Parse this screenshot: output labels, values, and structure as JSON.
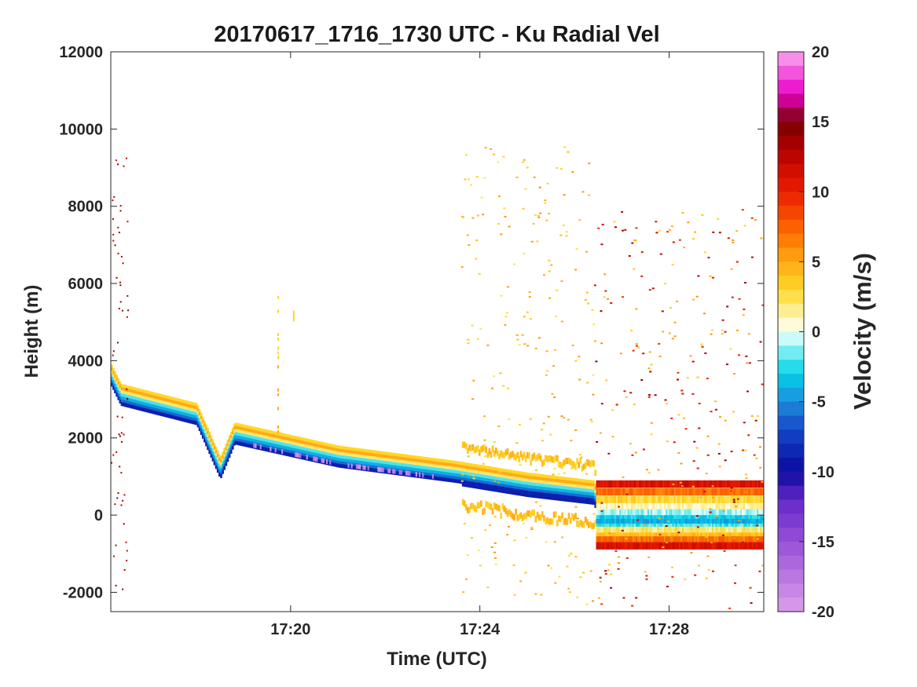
{
  "chart_data": {
    "type": "heatmap",
    "title": "20170617_1716_1730 UTC - Ku Radial Vel",
    "xlabel": "Time (UTC)",
    "ylabel": "Height (m)",
    "x_ticks": [
      "17:20",
      "17:24",
      "17:28"
    ],
    "x_tick_minutes": [
      20,
      24,
      28
    ],
    "xlim_minutes": [
      16.2,
      30
    ],
    "y_ticks": [
      "12000",
      "10000",
      "8000",
      "6000",
      "4000",
      "2000",
      "0",
      "-2000"
    ],
    "y_tick_values": [
      12000,
      10000,
      8000,
      6000,
      4000,
      2000,
      0,
      -2000
    ],
    "ylim": [
      -2500,
      12000
    ],
    "colorbar": {
      "label": "Velocity (m/s)",
      "ticks": [
        "20",
        "15",
        "10",
        "5",
        "0",
        "-5",
        "-10",
        "-15",
        "-20"
      ],
      "tick_values": [
        20,
        15,
        10,
        5,
        0,
        -5,
        -10,
        -15,
        -20
      ],
      "range": [
        -20,
        20
      ]
    },
    "signal_band_top_height_m": [
      [
        16.2,
        3900
      ],
      [
        16.4,
        3400
      ],
      [
        18.0,
        2900
      ],
      [
        18.5,
        1500
      ],
      [
        18.8,
        2400
      ],
      [
        21.0,
        1800
      ],
      [
        23.5,
        1400
      ],
      [
        25.0,
        1100
      ],
      [
        26.4,
        900
      ],
      [
        26.5,
        500
      ],
      [
        30.0,
        500
      ]
    ],
    "colors": {
      "strong_negative": "#0a2cc8",
      "moderate_negative": "#1fb5e8",
      "weak_negative": "#9ff1f7",
      "weak_positive": "#ffe066",
      "moderate_positive": "#ffa21a",
      "strong_positive": "#d40000",
      "extreme_negative": "#e88ce8"
    }
  }
}
